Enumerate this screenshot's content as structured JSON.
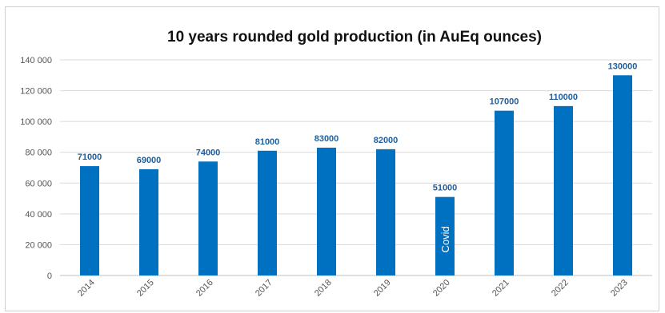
{
  "chart_data": {
    "type": "bar",
    "title": "10 years rounded gold production (in AuEq ounces)",
    "xlabel": "",
    "ylabel": "",
    "categories": [
      "2014",
      "2015",
      "2016",
      "2017",
      "2018",
      "2019",
      "2020",
      "2021",
      "2022",
      "2023"
    ],
    "values": [
      71000,
      69000,
      74000,
      81000,
      83000,
      82000,
      51000,
      107000,
      110000,
      130000
    ],
    "value_labels": [
      "71000",
      "69000",
      "74000",
      "81000",
      "83000",
      "82000",
      "51000",
      "107000",
      "110000",
      "130000"
    ],
    "ylim": [
      0,
      140000
    ],
    "yticks": [
      0,
      20000,
      40000,
      60000,
      80000,
      100000,
      120000,
      140000
    ],
    "ytick_labels": [
      "0",
      "20 000",
      "40 000",
      "60 000",
      "80 000",
      "100 000",
      "120 000",
      "140 000"
    ],
    "annotations": [
      {
        "category": "2020",
        "text": "Covid"
      }
    ],
    "grid": true,
    "legend": "none",
    "colors": {
      "bar": "#0070c0",
      "data_label": "#1f5f9f",
      "grid": "#d9d9d9"
    }
  }
}
